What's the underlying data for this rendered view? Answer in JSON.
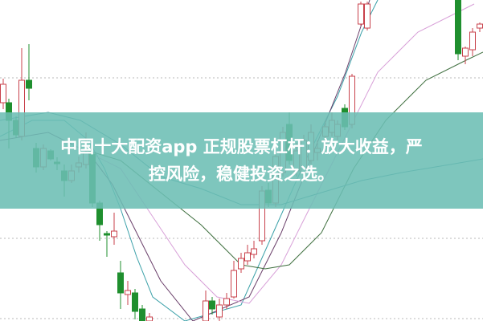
{
  "headline": {
    "line1": "中国十大配资app 正规股票杠杆：放大收益，严",
    "line2": "控风险，稳健投资之选。"
  },
  "colors": {
    "banner": "#6cbeb4",
    "up_candle": "#c8414b",
    "down_candle": "#1f8f2e",
    "grid": "#b8b8b8"
  }
}
